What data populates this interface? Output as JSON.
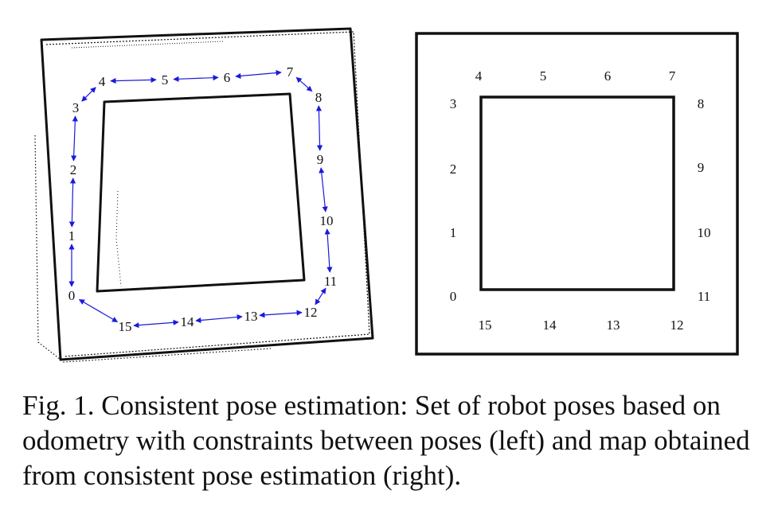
{
  "figure": {
    "left_panel": {
      "pose_labels": [
        "0",
        "1",
        "2",
        "3",
        "4",
        "5",
        "6",
        "7",
        "8",
        "9",
        "10",
        "11",
        "12",
        "13",
        "14",
        "15"
      ]
    },
    "right_panel": {
      "pose_labels": [
        "0",
        "1",
        "2",
        "3",
        "4",
        "5",
        "6",
        "7",
        "8",
        "9",
        "10",
        "11",
        "12",
        "13",
        "14",
        "15"
      ]
    },
    "colors": {
      "map": "#111111",
      "constraint": "#1a1adc"
    }
  },
  "caption": "Fig. 1. Consistent pose estimation: Set of robot poses based on odometry with constraints between poses (left) and map obtained from consistent pose estimation (right)."
}
